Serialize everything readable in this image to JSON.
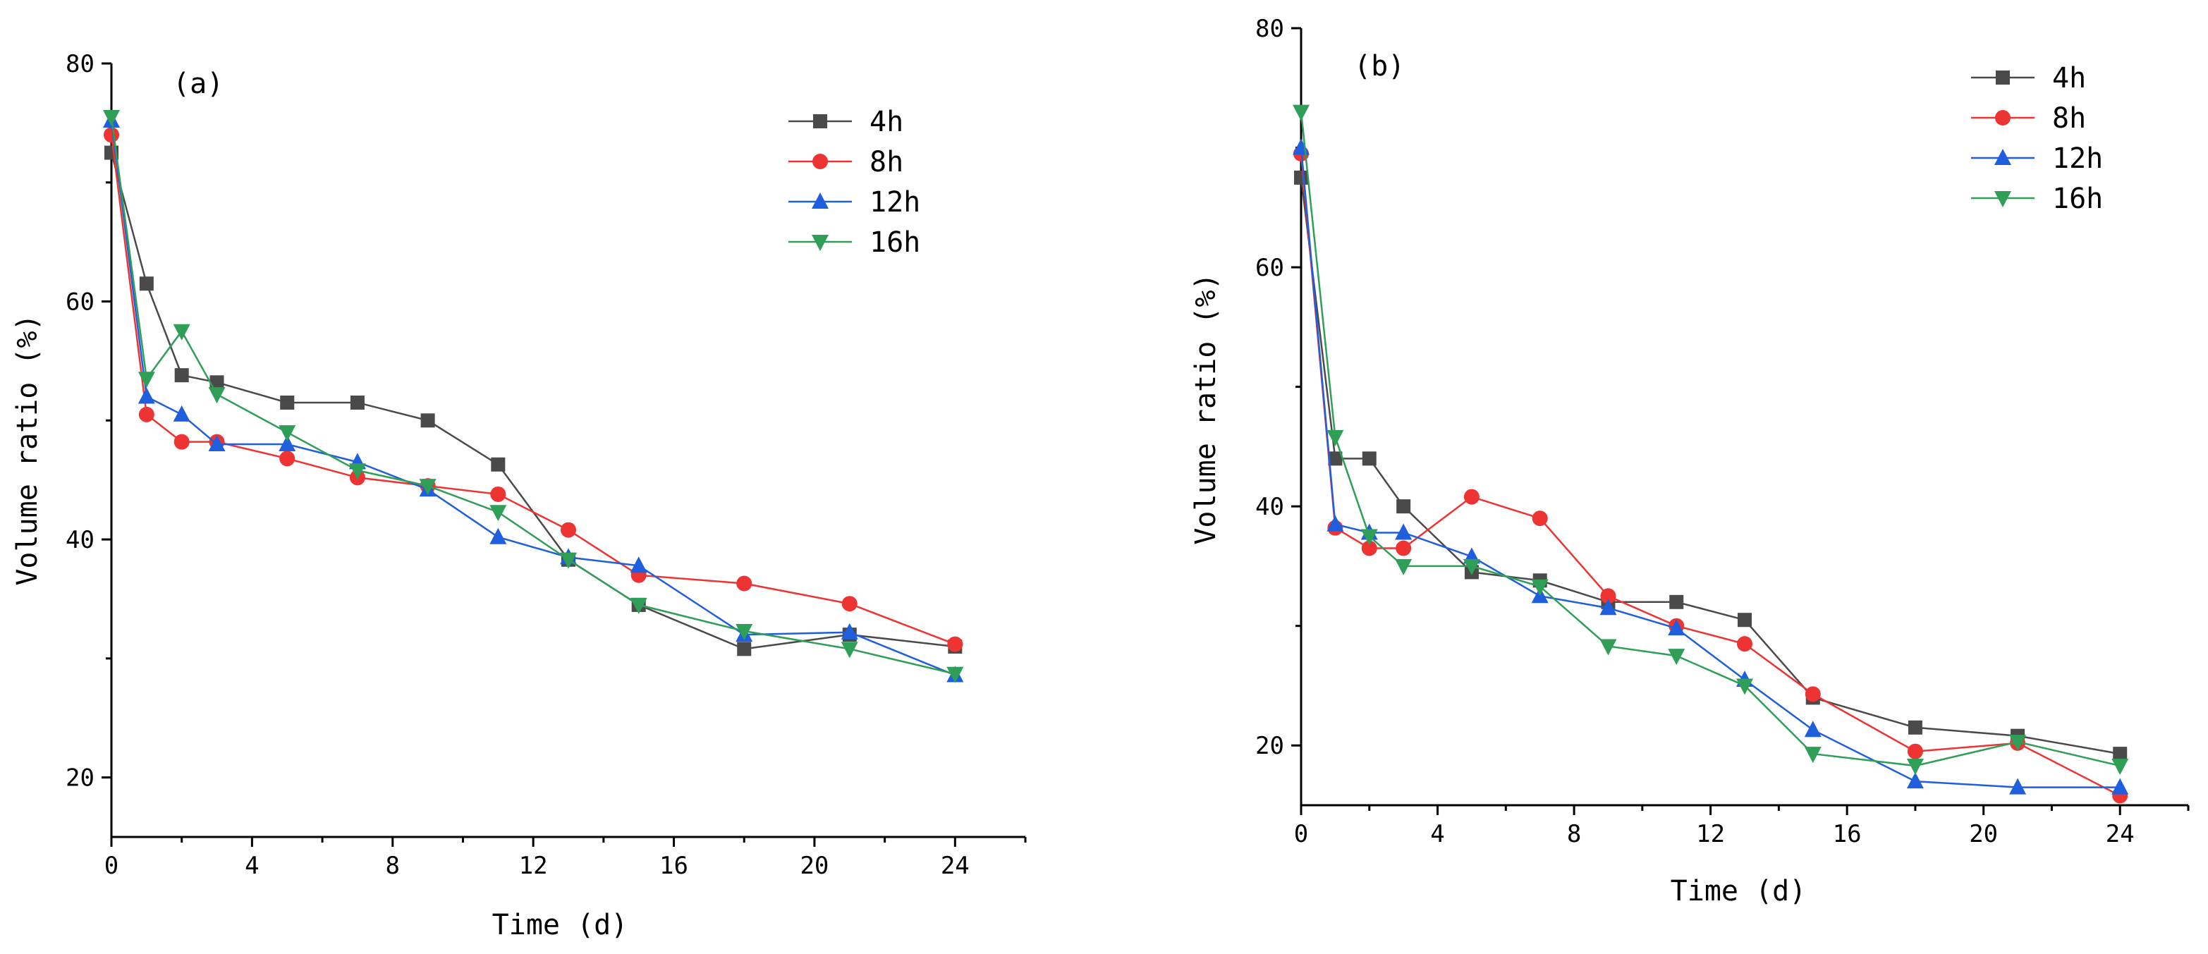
{
  "chart_data": [
    {
      "type": "line",
      "panel_label": "(a)",
      "xlabel": "Time (d)",
      "ylabel": "Volume ratio (%)",
      "xlim": [
        0,
        26
      ],
      "ylim": [
        15,
        80
      ],
      "xticks": [
        0,
        4,
        8,
        12,
        16,
        20,
        24
      ],
      "xminor": [
        2,
        6,
        10,
        14,
        18,
        22,
        26
      ],
      "yticks": [
        20,
        40,
        60,
        80
      ],
      "legend_position": "top-right",
      "series": [
        {
          "name": "4h",
          "color": "#4a4a4a",
          "marker": "square",
          "x": [
            0,
            1,
            2,
            3,
            5,
            7,
            9,
            11,
            13,
            15,
            18,
            21,
            24
          ],
          "y": [
            72.5,
            61.5,
            53.8,
            53.2,
            51.5,
            51.5,
            50.0,
            46.3,
            38.3,
            34.5,
            30.8,
            32.0,
            31.0
          ]
        },
        {
          "name": "8h",
          "color": "#ee3333",
          "marker": "circle",
          "x": [
            0,
            1,
            2,
            3,
            5,
            7,
            9,
            11,
            13,
            15,
            18,
            21,
            24
          ],
          "y": [
            74.0,
            50.5,
            48.2,
            48.2,
            46.8,
            45.2,
            44.5,
            43.8,
            40.8,
            37.0,
            36.3,
            34.6,
            31.2
          ]
        },
        {
          "name": "12h",
          "color": "#1f5fde",
          "marker": "triangle-up",
          "x": [
            0,
            1,
            2,
            3,
            5,
            7,
            9,
            11,
            13,
            15,
            18,
            21,
            24
          ],
          "y": [
            75.2,
            52.0,
            50.5,
            48.0,
            48.0,
            46.5,
            44.2,
            40.2,
            38.5,
            37.8,
            32.0,
            32.2,
            28.6
          ]
        },
        {
          "name": "16h",
          "color": "#2f9e57",
          "marker": "triangle-down",
          "x": [
            0,
            1,
            2,
            3,
            5,
            7,
            9,
            11,
            13,
            15,
            18,
            21,
            24
          ],
          "y": [
            75.5,
            53.5,
            57.5,
            52.2,
            49.0,
            45.8,
            44.5,
            42.3,
            38.3,
            34.5,
            32.3,
            30.8,
            28.7
          ]
        }
      ]
    },
    {
      "type": "line",
      "panel_label": "(b)",
      "xlabel": "Time (d)",
      "ylabel": "Volume ratio (%)",
      "xlim": [
        0,
        26
      ],
      "ylim": [
        15,
        80
      ],
      "xticks": [
        0,
        4,
        8,
        12,
        16,
        20,
        24
      ],
      "xminor": [
        2,
        6,
        10,
        14,
        18,
        22,
        26
      ],
      "yticks": [
        20,
        40,
        60,
        80
      ],
      "legend_position": "top-right",
      "series": [
        {
          "name": "4h",
          "color": "#4a4a4a",
          "marker": "square",
          "x": [
            0,
            1,
            2,
            3,
            5,
            7,
            9,
            11,
            13,
            15,
            18,
            21,
            24
          ],
          "y": [
            67.5,
            44.0,
            44.0,
            40.0,
            34.5,
            33.8,
            32.0,
            32.0,
            30.5,
            24.0,
            21.5,
            20.8,
            19.3
          ]
        },
        {
          "name": "8h",
          "color": "#ee3333",
          "marker": "circle",
          "x": [
            0,
            1,
            2,
            3,
            5,
            7,
            9,
            11,
            13,
            15,
            18,
            21,
            24
          ],
          "y": [
            69.5,
            38.2,
            36.5,
            36.5,
            40.8,
            39.0,
            32.5,
            30.0,
            28.5,
            24.3,
            19.5,
            20.2,
            15.8
          ]
        },
        {
          "name": "12h",
          "color": "#1f5fde",
          "marker": "triangle-up",
          "x": [
            0,
            1,
            2,
            3,
            5,
            7,
            9,
            11,
            13,
            15,
            18,
            21,
            24
          ],
          "y": [
            70.0,
            38.5,
            37.8,
            37.8,
            35.8,
            32.5,
            31.5,
            29.8,
            25.5,
            21.3,
            17.0,
            16.5,
            16.5
          ]
        },
        {
          "name": "16h",
          "color": "#2f9e57",
          "marker": "triangle-down",
          "x": [
            0,
            1,
            2,
            3,
            5,
            7,
            9,
            11,
            13,
            15,
            18,
            21,
            24
          ],
          "y": [
            73.0,
            45.8,
            37.5,
            35.0,
            35.0,
            33.3,
            28.3,
            27.5,
            25.0,
            19.3,
            18.3,
            20.3,
            18.3
          ]
        }
      ]
    }
  ]
}
